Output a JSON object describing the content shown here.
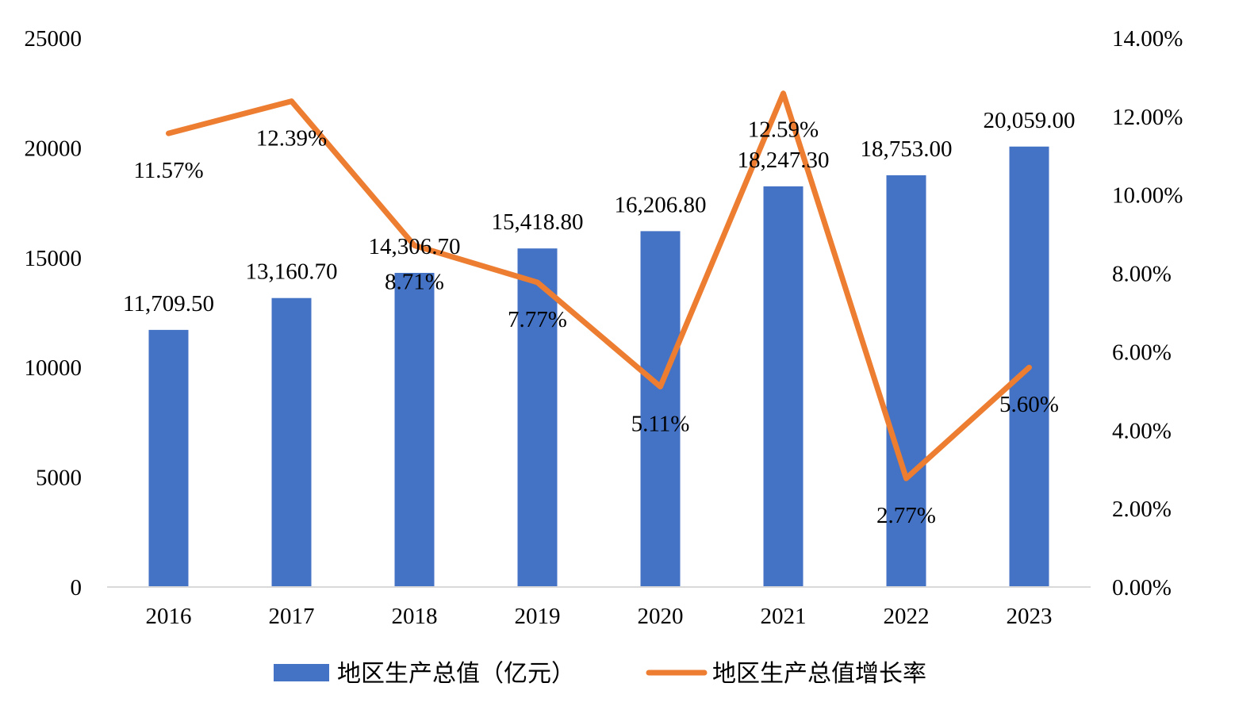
{
  "chart_data": {
    "type": "bar+line",
    "categories": [
      "2016",
      "2017",
      "2018",
      "2019",
      "2020",
      "2021",
      "2022",
      "2023"
    ],
    "series": [
      {
        "name": "地区生产总值（亿元）",
        "type": "bar",
        "axis": "left",
        "values": [
          11709.5,
          13160.7,
          14306.7,
          15418.8,
          16206.8,
          18247.3,
          18753.0,
          20059.0
        ],
        "labels": [
          "11,709.50",
          "13,160.70",
          "14,306.70",
          "15,418.80",
          "16,206.80",
          "18,247.30",
          "18,753.00",
          "20,059.00"
        ],
        "color": "#4472C4"
      },
      {
        "name": "地区生产总值增长率",
        "type": "line",
        "axis": "right",
        "values": [
          11.57,
          12.39,
          8.71,
          7.77,
          5.11,
          12.59,
          2.77,
          5.6
        ],
        "labels": [
          "11.57%",
          "12.39%",
          "8.71%",
          "7.77%",
          "5.11%",
          "12.59%",
          "2.77%",
          "5.60%"
        ],
        "color": "#ED7D31"
      }
    ],
    "y_left": {
      "min": 0,
      "max": 25000,
      "ticks": [
        "0",
        "5000",
        "10000",
        "15000",
        "20000",
        "25000"
      ]
    },
    "y_right": {
      "min": 0,
      "max": 14,
      "ticks": [
        "0.00%",
        "2.00%",
        "4.00%",
        "6.00%",
        "8.00%",
        "10.00%",
        "12.00%",
        "14.00%"
      ]
    },
    "grid": false,
    "legend_position": "bottom"
  }
}
